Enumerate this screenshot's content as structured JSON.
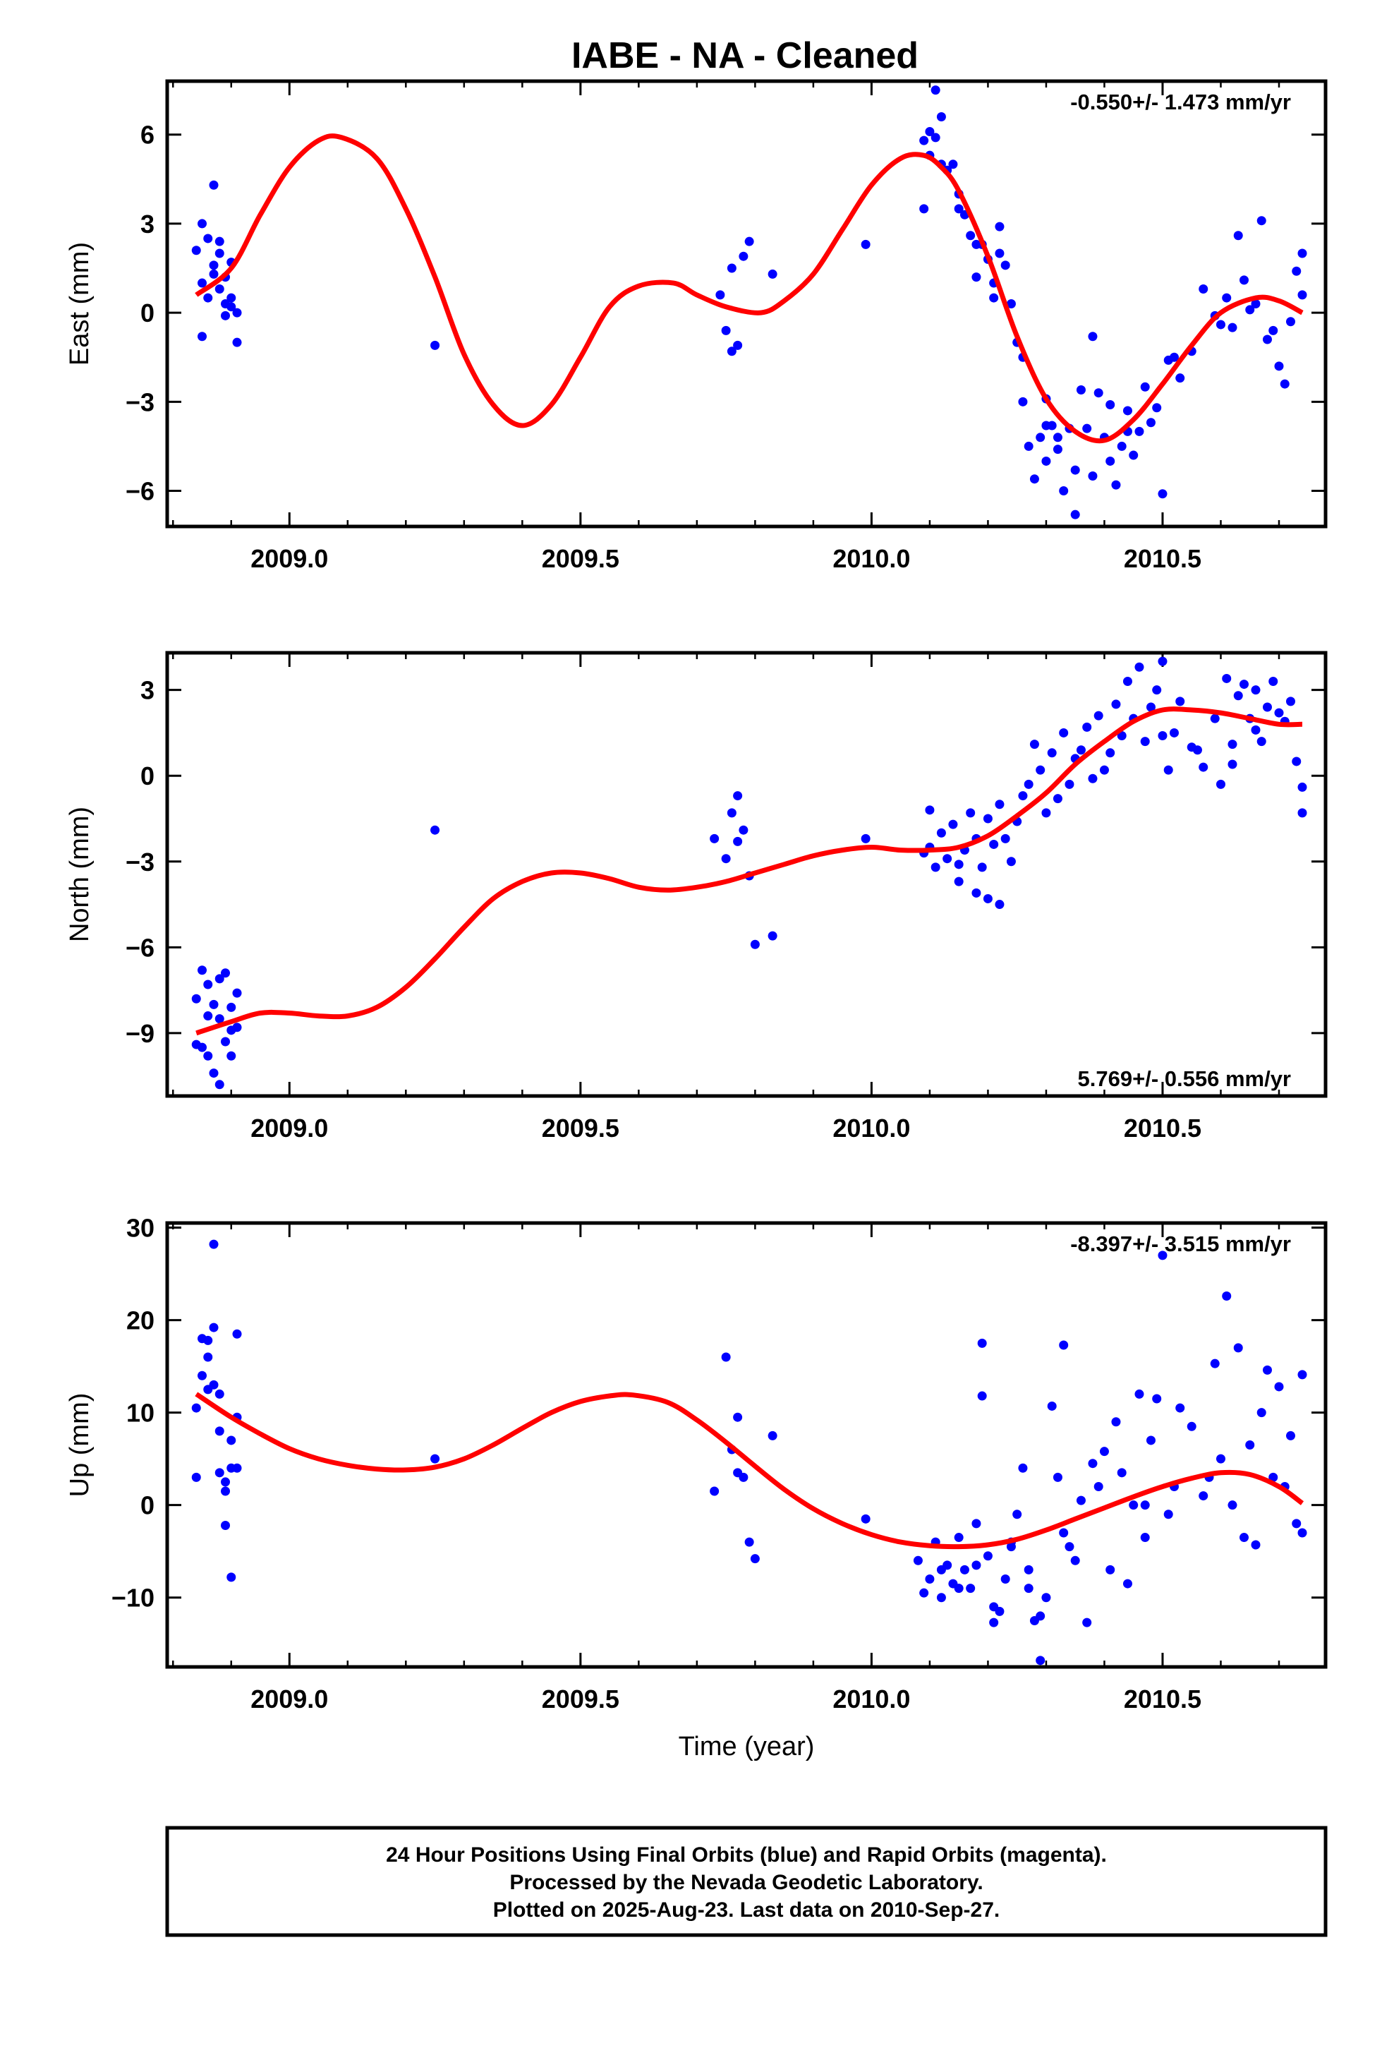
{
  "title": "IABE  - NA - Cleaned",
  "colors": {
    "final_orbits": "#0000ff",
    "model": "#ff0000",
    "frame": "#000000"
  },
  "footer": {
    "line1": "24 Hour Positions Using Final Orbits (blue) and Rapid Orbits (magenta).",
    "line2": "Processed by the Nevada Geodetic Laboratory.",
    "line3": "Plotted on 2025-Aug-23. Last data on 2010-Sep-27."
  },
  "chart_data": [
    {
      "type": "scatter",
      "ylabel": "East (mm)",
      "rate_label": "-0.550+/- 1.473 mm/yr",
      "rate_position": "top-right",
      "xlim": [
        2008.79,
        2010.78
      ],
      "ylim": [
        -7.2,
        7.8
      ],
      "xticks": [
        2009.0,
        2009.5,
        2010.0,
        2010.5
      ],
      "xtick_labels": [
        "2009.0",
        "2009.5",
        "2010.0",
        "2010.5"
      ],
      "yticks": [
        -6,
        -3,
        0,
        3,
        6
      ],
      "ytick_labels": [
        "−6",
        "−3",
        "0",
        "3",
        "6"
      ],
      "model_curve": {
        "x": [
          2008.84,
          2008.9,
          2008.95,
          2009.0,
          2009.05,
          2009.09,
          2009.15,
          2009.2,
          2009.25,
          2009.3,
          2009.35,
          2009.4,
          2009.45,
          2009.5,
          2009.55,
          2009.6,
          2009.66,
          2009.7,
          2009.75,
          2009.81,
          2009.85,
          2009.9,
          2009.95,
          2010.0,
          2010.05,
          2010.09,
          2010.12,
          2010.15,
          2010.2,
          2010.25,
          2010.3,
          2010.35,
          2010.4,
          2010.45,
          2010.5,
          2010.55,
          2010.6,
          2010.66,
          2010.7,
          2010.74
        ],
        "y": [
          0.6,
          1.5,
          3.3,
          4.9,
          5.8,
          5.9,
          5.2,
          3.5,
          1.2,
          -1.4,
          -3.1,
          -3.8,
          -3.1,
          -1.5,
          0.2,
          0.9,
          1.0,
          0.6,
          0.2,
          0.0,
          0.4,
          1.3,
          2.8,
          4.3,
          5.2,
          5.3,
          4.9,
          4.1,
          1.9,
          -0.8,
          -2.9,
          -4.0,
          -4.3,
          -3.6,
          -2.4,
          -1.1,
          0.0,
          0.5,
          0.4,
          0.0
        ]
      },
      "points": {
        "x": [
          2008.84,
          2008.85,
          2008.85,
          2008.86,
          2008.86,
          2008.87,
          2008.87,
          2008.88,
          2008.88,
          2008.88,
          2008.89,
          2008.89,
          2008.9,
          2008.9,
          2008.91,
          2008.91,
          2008.85,
          2008.87,
          2008.89,
          2008.9,
          2009.25,
          2009.74,
          2009.75,
          2009.76,
          2009.76,
          2009.77,
          2009.78,
          2009.79,
          2009.83,
          2009.99,
          2010.09,
          2010.09,
          2010.1,
          2010.1,
          2010.11,
          2010.11,
          2010.12,
          2010.12,
          2010.13,
          2010.14,
          2010.15,
          2010.15,
          2010.16,
          2010.17,
          2010.18,
          2010.18,
          2010.19,
          2010.2,
          2010.21,
          2010.21,
          2010.22,
          2010.23,
          2010.24,
          2010.25,
          2010.26,
          2010.27,
          2010.28,
          2010.29,
          2010.3,
          2010.3,
          2010.31,
          2010.32,
          2010.33,
          2010.34,
          2010.35,
          2010.36,
          2010.37,
          2010.38,
          2010.39,
          2010.4,
          2010.41,
          2010.42,
          2010.43,
          2010.44,
          2010.45,
          2010.46,
          2010.47,
          2010.48,
          2010.49,
          2010.5,
          2010.51,
          2010.52,
          2010.53,
          2010.55,
          2010.57,
          2010.59,
          2010.6,
          2010.61,
          2010.62,
          2010.63,
          2010.64,
          2010.65,
          2010.66,
          2010.67,
          2010.68,
          2010.69,
          2010.7,
          2010.71,
          2010.72,
          2010.73,
          2010.74,
          2010.74,
          2010.3,
          2010.32,
          2010.35,
          2010.38,
          2010.41,
          2010.44,
          2010.22,
          2010.26
        ],
        "y": [
          2.1,
          3.0,
          1.0,
          2.5,
          0.5,
          4.3,
          1.6,
          2.0,
          0.8,
          2.4,
          1.2,
          0.3,
          1.7,
          0.5,
          -1.0,
          0.0,
          -0.8,
          1.3,
          -0.1,
          0.2,
          -1.1,
          0.6,
          -0.6,
          1.5,
          -1.3,
          -1.1,
          1.9,
          2.4,
          1.3,
          2.3,
          3.5,
          5.8,
          6.1,
          5.3,
          7.5,
          5.9,
          6.6,
          5.0,
          4.8,
          5.0,
          4.0,
          3.5,
          3.3,
          2.6,
          1.2,
          2.3,
          2.3,
          1.8,
          0.5,
          1.0,
          2.9,
          1.6,
          0.3,
          -1.0,
          -3.0,
          -4.5,
          -5.6,
          -4.2,
          -2.9,
          -5.0,
          -3.8,
          -4.6,
          -6.0,
          -3.9,
          -6.8,
          -2.6,
          -3.9,
          -0.8,
          -2.7,
          -4.2,
          -3.1,
          -5.8,
          -4.5,
          -3.3,
          -4.8,
          -4.0,
          -2.5,
          -3.7,
          -3.2,
          -6.1,
          -1.6,
          -1.5,
          -2.2,
          -1.3,
          0.8,
          -0.1,
          -0.4,
          0.5,
          -0.5,
          2.6,
          1.1,
          0.1,
          0.3,
          3.1,
          -0.9,
          -0.6,
          -1.8,
          -2.4,
          -0.3,
          1.4,
          2.0,
          0.6,
          -3.8,
          -4.2,
          -5.3,
          -5.5,
          -5.0,
          -4.0,
          2.0,
          -1.5
        ]
      }
    },
    {
      "type": "scatter",
      "ylabel": "North (mm)",
      "rate_label": "5.769+/- 0.556 mm/yr",
      "rate_position": "bottom-right",
      "xlim": [
        2008.79,
        2010.78
      ],
      "ylim": [
        -11.2,
        4.3
      ],
      "xticks": [
        2009.0,
        2009.5,
        2010.0,
        2010.5
      ],
      "xtick_labels": [
        "2009.0",
        "2009.5",
        "2010.0",
        "2010.5"
      ],
      "yticks": [
        -9,
        -6,
        -3,
        0,
        3
      ],
      "ytick_labels": [
        "−9",
        "−6",
        "−3",
        "0",
        "3"
      ],
      "model_curve": {
        "x": [
          2008.84,
          2008.9,
          2008.95,
          2009.0,
          2009.05,
          2009.1,
          2009.15,
          2009.2,
          2009.25,
          2009.3,
          2009.35,
          2009.4,
          2009.45,
          2009.5,
          2009.55,
          2009.6,
          2009.65,
          2009.7,
          2009.75,
          2009.8,
          2009.85,
          2009.9,
          2009.95,
          2010.0,
          2010.05,
          2010.1,
          2010.15,
          2010.2,
          2010.25,
          2010.3,
          2010.35,
          2010.4,
          2010.45,
          2010.5,
          2010.55,
          2010.6,
          2010.65,
          2010.7,
          2010.74
        ],
        "y": [
          -9.0,
          -8.6,
          -8.3,
          -8.3,
          -8.4,
          -8.4,
          -8.1,
          -7.4,
          -6.4,
          -5.3,
          -4.3,
          -3.7,
          -3.4,
          -3.4,
          -3.6,
          -3.9,
          -4.0,
          -3.9,
          -3.7,
          -3.4,
          -3.1,
          -2.8,
          -2.6,
          -2.5,
          -2.6,
          -2.6,
          -2.5,
          -2.1,
          -1.4,
          -0.6,
          0.4,
          1.2,
          1.9,
          2.3,
          2.3,
          2.2,
          2.0,
          1.8,
          1.8
        ]
      },
      "points": {
        "x": [
          2008.84,
          2008.84,
          2008.85,
          2008.85,
          2008.86,
          2008.86,
          2008.87,
          2008.87,
          2008.88,
          2008.88,
          2008.89,
          2008.89,
          2008.9,
          2008.9,
          2008.91,
          2008.91,
          2008.86,
          2008.88,
          2008.9,
          2009.25,
          2009.73,
          2009.75,
          2009.76,
          2009.77,
          2009.77,
          2009.78,
          2009.79,
          2009.8,
          2009.83,
          2009.99,
          2010.09,
          2010.1,
          2010.1,
          2010.11,
          2010.12,
          2010.13,
          2010.14,
          2010.15,
          2010.16,
          2010.17,
          2010.18,
          2010.19,
          2010.2,
          2010.21,
          2010.22,
          2010.23,
          2010.24,
          2010.25,
          2010.26,
          2010.27,
          2010.28,
          2010.29,
          2010.3,
          2010.31,
          2010.32,
          2010.33,
          2010.34,
          2010.35,
          2010.36,
          2010.37,
          2010.38,
          2010.39,
          2010.4,
          2010.41,
          2010.42,
          2010.43,
          2010.44,
          2010.45,
          2010.46,
          2010.47,
          2010.48,
          2010.49,
          2010.5,
          2010.51,
          2010.52,
          2010.53,
          2010.55,
          2010.57,
          2010.59,
          2010.6,
          2010.61,
          2010.62,
          2010.63,
          2010.64,
          2010.65,
          2010.66,
          2010.67,
          2010.68,
          2010.69,
          2010.7,
          2010.71,
          2010.72,
          2010.73,
          2010.74,
          2010.74,
          2010.15,
          2010.18,
          2010.2,
          2010.22,
          2010.5,
          2010.56,
          2010.62,
          2010.66
        ],
        "y": [
          -7.8,
          -9.4,
          -6.8,
          -9.5,
          -7.3,
          -8.4,
          -8.0,
          -10.4,
          -7.1,
          -8.5,
          -6.9,
          -9.3,
          -8.1,
          -9.8,
          -7.6,
          -8.8,
          -9.8,
          -10.8,
          -8.9,
          -1.9,
          -2.2,
          -2.9,
          -1.3,
          -0.7,
          -2.3,
          -1.9,
          -3.5,
          -5.9,
          -5.6,
          -2.2,
          -2.7,
          -1.2,
          -2.5,
          -3.2,
          -2.0,
          -2.9,
          -1.7,
          -3.1,
          -2.6,
          -1.3,
          -2.2,
          -3.2,
          -1.5,
          -2.4,
          -1.0,
          -2.2,
          -3.0,
          -1.6,
          -0.7,
          -0.3,
          1.1,
          0.2,
          -1.3,
          0.8,
          -0.8,
          1.5,
          -0.3,
          0.6,
          0.9,
          1.7,
          -0.1,
          2.1,
          0.2,
          0.8,
          2.5,
          1.4,
          3.3,
          2.0,
          3.8,
          1.2,
          2.4,
          3.0,
          4.0,
          0.2,
          1.5,
          2.6,
          1.0,
          0.3,
          2.0,
          -0.3,
          3.4,
          1.1,
          2.8,
          3.2,
          2.0,
          3.0,
          1.2,
          2.4,
          3.3,
          2.2,
          1.9,
          2.6,
          0.5,
          -0.4,
          -1.3,
          -3.7,
          -4.1,
          -4.3,
          -4.5,
          1.4,
          0.9,
          0.4,
          1.6
        ]
      }
    },
    {
      "type": "scatter",
      "ylabel": "Up (mm)",
      "xlabel": "Time (year)",
      "rate_label": "-8.397+/- 3.515 mm/yr",
      "rate_position": "top-right",
      "xlim": [
        2008.79,
        2010.78
      ],
      "ylim": [
        -17.5,
        30.5
      ],
      "xticks": [
        2009.0,
        2009.5,
        2010.0,
        2010.5
      ],
      "xtick_labels": [
        "2009.0",
        "2009.5",
        "2010.0",
        "2010.5"
      ],
      "yticks": [
        -10,
        0,
        10,
        20,
        30
      ],
      "ytick_labels": [
        "−10",
        "0",
        "10",
        "20",
        "30"
      ],
      "model_curve": {
        "x": [
          2008.84,
          2008.9,
          2008.95,
          2009.0,
          2009.05,
          2009.1,
          2009.15,
          2009.2,
          2009.25,
          2009.3,
          2009.35,
          2009.4,
          2009.45,
          2009.5,
          2009.55,
          2009.59,
          2009.65,
          2009.7,
          2009.75,
          2009.8,
          2009.85,
          2009.9,
          2009.95,
          2010.0,
          2010.05,
          2010.1,
          2010.15,
          2010.2,
          2010.25,
          2010.3,
          2010.35,
          2010.4,
          2010.45,
          2010.5,
          2010.55,
          2010.6,
          2010.65,
          2010.7,
          2010.74
        ],
        "y": [
          12.0,
          9.5,
          7.7,
          6.1,
          5.0,
          4.3,
          3.9,
          3.8,
          4.1,
          5.0,
          6.5,
          8.3,
          10.0,
          11.2,
          11.8,
          11.9,
          11.1,
          9.2,
          6.8,
          4.2,
          1.7,
          -0.4,
          -2.0,
          -3.2,
          -4.0,
          -4.4,
          -4.5,
          -4.3,
          -3.7,
          -2.7,
          -1.5,
          -0.3,
          0.9,
          2.0,
          2.9,
          3.5,
          3.3,
          2.0,
          0.2
        ]
      },
      "points": {
        "x": [
          2008.84,
          2008.84,
          2008.85,
          2008.85,
          2008.86,
          2008.86,
          2008.87,
          2008.87,
          2008.88,
          2008.88,
          2008.88,
          2008.89,
          2008.89,
          2008.9,
          2008.9,
          2008.91,
          2008.91,
          2008.86,
          2008.87,
          2008.89,
          2008.9,
          2008.91,
          2009.25,
          2009.73,
          2009.75,
          2009.76,
          2009.77,
          2009.77,
          2009.78,
          2009.79,
          2009.8,
          2009.83,
          2009.99,
          2010.08,
          2010.09,
          2010.1,
          2010.11,
          2010.12,
          2010.13,
          2010.14,
          2010.15,
          2010.16,
          2010.17,
          2010.18,
          2010.19,
          2010.19,
          2010.2,
          2010.21,
          2010.22,
          2010.23,
          2010.24,
          2010.25,
          2010.26,
          2010.27,
          2010.28,
          2010.29,
          2010.3,
          2010.31,
          2010.32,
          2010.33,
          2010.34,
          2010.35,
          2010.36,
          2010.37,
          2010.38,
          2010.39,
          2010.4,
          2010.41,
          2010.42,
          2010.43,
          2010.44,
          2010.45,
          2010.46,
          2010.47,
          2010.48,
          2010.49,
          2010.5,
          2010.51,
          2010.52,
          2010.53,
          2010.55,
          2010.57,
          2010.59,
          2010.6,
          2010.61,
          2010.62,
          2010.63,
          2010.64,
          2010.65,
          2010.66,
          2010.67,
          2010.68,
          2010.69,
          2010.7,
          2010.71,
          2010.72,
          2010.73,
          2010.74,
          2010.74,
          2010.12,
          2010.15,
          2010.18,
          2010.21,
          2010.24,
          2010.27,
          2010.29,
          2010.33,
          2010.47,
          2010.58
        ],
        "y": [
          3.0,
          10.5,
          18.0,
          14.0,
          12.5,
          17.8,
          19.2,
          28.2,
          12.0,
          8.0,
          3.5,
          1.5,
          -2.2,
          -7.8,
          4.0,
          9.5,
          18.5,
          16.0,
          13.0,
          2.5,
          7.0,
          4.0,
          5.0,
          1.5,
          16.0,
          6.0,
          3.5,
          9.5,
          3.0,
          -4.0,
          -5.8,
          7.5,
          -1.5,
          -6.0,
          -9.5,
          -8.0,
          -4.0,
          -10.0,
          -6.5,
          -8.5,
          -3.5,
          -7.0,
          -9.0,
          -2.0,
          11.8,
          17.5,
          -5.5,
          -12.7,
          -11.5,
          -8.0,
          -4.0,
          -1.0,
          4.0,
          -9.0,
          -12.5,
          -16.8,
          -10.0,
          10.7,
          3.0,
          17.3,
          -4.5,
          -6.0,
          0.5,
          -12.7,
          4.5,
          2.0,
          5.8,
          -7.0,
          9.0,
          3.5,
          -8.5,
          0.0,
          12.0,
          -3.5,
          7.0,
          11.5,
          27.0,
          -1.0,
          2.0,
          10.5,
          8.5,
          1.0,
          15.3,
          5.0,
          22.6,
          0.0,
          17.0,
          -3.5,
          6.5,
          -4.3,
          10.0,
          14.6,
          3.0,
          12.8,
          2.0,
          7.5,
          -2.0,
          14.1,
          -3.0,
          -7.0,
          -9.0,
          -6.5,
          -11.0,
          -4.5,
          -7.0,
          -12.0,
          -3.0,
          0.0,
          3.0
        ]
      }
    }
  ]
}
